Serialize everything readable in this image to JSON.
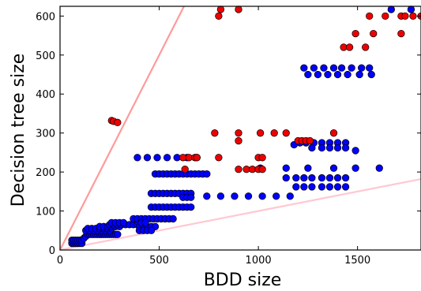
{
  "chart_data": {
    "type": "scatter",
    "title": "",
    "xlabel": "BDD size",
    "ylabel": "Decision tree size",
    "xlim": [
      0,
      1820
    ],
    "ylim": [
      0,
      625
    ],
    "xticks": [
      0,
      500,
      1000,
      1500
    ],
    "yticks": [
      0,
      100,
      200,
      300,
      400,
      500,
      600
    ],
    "grid": false,
    "legend": "none",
    "reference_lines": [
      {
        "color": "#ff9a9a",
        "points": [
          [
            0,
            0
          ],
          [
            625,
            625
          ]
        ]
      },
      {
        "color": "#ffc8d2",
        "points": [
          [
            0,
            0
          ],
          [
            1820,
            182
          ]
        ]
      }
    ],
    "series": [
      {
        "color": "#0000ff",
        "points": [
          [
            60,
            17
          ],
          [
            70,
            17
          ],
          [
            80,
            17
          ],
          [
            90,
            17
          ],
          [
            100,
            17
          ],
          [
            110,
            17
          ],
          [
            60,
            25
          ],
          [
            70,
            25
          ],
          [
            80,
            25
          ],
          [
            90,
            25
          ],
          [
            100,
            25
          ],
          [
            110,
            25
          ],
          [
            120,
            30
          ],
          [
            130,
            35
          ],
          [
            140,
            40
          ],
          [
            150,
            40
          ],
          [
            160,
            40
          ],
          [
            170,
            40
          ],
          [
            180,
            40
          ],
          [
            190,
            40
          ],
          [
            200,
            40
          ],
          [
            210,
            40
          ],
          [
            220,
            40
          ],
          [
            230,
            40
          ],
          [
            240,
            40
          ],
          [
            250,
            40
          ],
          [
            260,
            40
          ],
          [
            270,
            40
          ],
          [
            280,
            40
          ],
          [
            290,
            40
          ],
          [
            130,
            50
          ],
          [
            150,
            50
          ],
          [
            170,
            50
          ],
          [
            190,
            50
          ],
          [
            210,
            50
          ],
          [
            230,
            50
          ],
          [
            250,
            50
          ],
          [
            140,
            55
          ],
          [
            160,
            55
          ],
          [
            180,
            55
          ],
          [
            200,
            55
          ],
          [
            220,
            55
          ],
          [
            240,
            55
          ],
          [
            260,
            55
          ],
          [
            200,
            60
          ],
          [
            220,
            60
          ],
          [
            240,
            60
          ],
          [
            260,
            60
          ],
          [
            280,
            60
          ],
          [
            300,
            60
          ],
          [
            250,
            65
          ],
          [
            270,
            65
          ],
          [
            290,
            65
          ],
          [
            310,
            65
          ],
          [
            330,
            65
          ],
          [
            350,
            65
          ],
          [
            370,
            65
          ],
          [
            390,
            65
          ],
          [
            260,
            70
          ],
          [
            280,
            70
          ],
          [
            300,
            70
          ],
          [
            320,
            70
          ],
          [
            370,
            80
          ],
          [
            390,
            80
          ],
          [
            410,
            80
          ],
          [
            430,
            80
          ],
          [
            450,
            80
          ],
          [
            470,
            80
          ],
          [
            490,
            80
          ],
          [
            510,
            80
          ],
          [
            530,
            80
          ],
          [
            550,
            80
          ],
          [
            570,
            80
          ],
          [
            400,
            60
          ],
          [
            420,
            60
          ],
          [
            440,
            60
          ],
          [
            460,
            60
          ],
          [
            480,
            60
          ],
          [
            400,
            50
          ],
          [
            420,
            50
          ],
          [
            440,
            50
          ],
          [
            460,
            50
          ],
          [
            410,
            70
          ],
          [
            430,
            70
          ],
          [
            460,
            110
          ],
          [
            480,
            110
          ],
          [
            500,
            110
          ],
          [
            520,
            110
          ],
          [
            540,
            110
          ],
          [
            560,
            110
          ],
          [
            580,
            110
          ],
          [
            600,
            110
          ],
          [
            620,
            110
          ],
          [
            640,
            110
          ],
          [
            660,
            110
          ],
          [
            460,
            145
          ],
          [
            480,
            145
          ],
          [
            500,
            145
          ],
          [
            520,
            145
          ],
          [
            540,
            145
          ],
          [
            560,
            145
          ],
          [
            580,
            145
          ],
          [
            600,
            145
          ],
          [
            620,
            145
          ],
          [
            640,
            145
          ],
          [
            660,
            145
          ],
          [
            620,
            135
          ],
          [
            640,
            135
          ],
          [
            660,
            135
          ],
          [
            740,
            138
          ],
          [
            810,
            138
          ],
          [
            880,
            138
          ],
          [
            950,
            138
          ],
          [
            1020,
            138
          ],
          [
            1090,
            138
          ],
          [
            1160,
            138
          ],
          [
            480,
            195
          ],
          [
            500,
            195
          ],
          [
            520,
            195
          ],
          [
            540,
            195
          ],
          [
            560,
            195
          ],
          [
            580,
            195
          ],
          [
            600,
            195
          ],
          [
            620,
            195
          ],
          [
            640,
            195
          ],
          [
            660,
            195
          ],
          [
            680,
            195
          ],
          [
            700,
            195
          ],
          [
            720,
            195
          ],
          [
            740,
            195
          ],
          [
            390,
            237
          ],
          [
            440,
            237
          ],
          [
            490,
            237
          ],
          [
            540,
            237
          ],
          [
            590,
            237
          ],
          [
            640,
            237
          ],
          [
            690,
            237
          ],
          [
            1010,
            210
          ],
          [
            1140,
            210
          ],
          [
            1250,
            210
          ],
          [
            1380,
            210
          ],
          [
            1490,
            210
          ],
          [
            1610,
            210
          ],
          [
            1140,
            185
          ],
          [
            1190,
            185
          ],
          [
            1230,
            185
          ],
          [
            1270,
            185
          ],
          [
            1320,
            185
          ],
          [
            1360,
            185
          ],
          [
            1400,
            185
          ],
          [
            1440,
            185
          ],
          [
            1190,
            162
          ],
          [
            1230,
            162
          ],
          [
            1270,
            162
          ],
          [
            1320,
            162
          ],
          [
            1360,
            162
          ],
          [
            1400,
            162
          ],
          [
            1440,
            162
          ],
          [
            1180,
            270
          ],
          [
            1210,
            275
          ],
          [
            1240,
            275
          ],
          [
            1280,
            275
          ],
          [
            1320,
            275
          ],
          [
            1360,
            275
          ],
          [
            1400,
            275
          ],
          [
            1440,
            275
          ],
          [
            1270,
            262
          ],
          [
            1320,
            262
          ],
          [
            1360,
            262
          ],
          [
            1400,
            262
          ],
          [
            1440,
            262
          ],
          [
            1490,
            255
          ],
          [
            1230,
            467
          ],
          [
            1280,
            467
          ],
          [
            1330,
            467
          ],
          [
            1380,
            467
          ],
          [
            1420,
            467
          ],
          [
            1470,
            467
          ],
          [
            1520,
            467
          ],
          [
            1560,
            467
          ],
          [
            1250,
            450
          ],
          [
            1300,
            450
          ],
          [
            1350,
            450
          ],
          [
            1400,
            450
          ],
          [
            1450,
            450
          ],
          [
            1510,
            450
          ],
          [
            1570,
            450
          ],
          [
            1670,
            617
          ],
          [
            1770,
            617
          ],
          [
            1800,
            635
          ]
        ]
      },
      {
        "color": "#ee0000",
        "points": [
          [
            260,
            332
          ],
          [
            270,
            330
          ],
          [
            290,
            327
          ],
          [
            620,
            237
          ],
          [
            650,
            237
          ],
          [
            680,
            237
          ],
          [
            690,
            237
          ],
          [
            800,
            237
          ],
          [
            630,
            207
          ],
          [
            900,
            207
          ],
          [
            940,
            207
          ],
          [
            970,
            207
          ],
          [
            1000,
            207
          ],
          [
            1020,
            207
          ],
          [
            780,
            300
          ],
          [
            900,
            300
          ],
          [
            1010,
            300
          ],
          [
            1080,
            300
          ],
          [
            1140,
            300
          ],
          [
            1380,
            300
          ],
          [
            900,
            280
          ],
          [
            1200,
            280
          ],
          [
            1220,
            280
          ],
          [
            1240,
            280
          ],
          [
            1260,
            280
          ],
          [
            1000,
            237
          ],
          [
            1020,
            237
          ],
          [
            1430,
            520
          ],
          [
            1460,
            520
          ],
          [
            1540,
            520
          ],
          [
            1490,
            555
          ],
          [
            1580,
            555
          ],
          [
            1720,
            555
          ],
          [
            800,
            600
          ],
          [
            810,
            617
          ],
          [
            900,
            617
          ],
          [
            1560,
            600
          ],
          [
            1640,
            600
          ],
          [
            1720,
            600
          ],
          [
            1740,
            600
          ],
          [
            1780,
            600
          ],
          [
            1820,
            600
          ]
        ]
      }
    ]
  }
}
